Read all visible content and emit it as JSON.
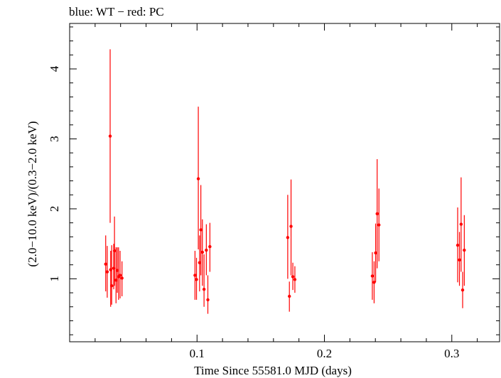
{
  "chart_data": {
    "type": "scatter",
    "title": "blue: WT − red: PC",
    "xlabel": "Time Since 55581.0 MJD (days)",
    "ylabel": "(2.0−10.0 keV)/(0.3−2.0 keV)",
    "xlim": [
      0.0,
      0.3375
    ],
    "ylim": [
      0.1,
      4.65
    ],
    "x_ticks": [
      {
        "value": 0.1,
        "label": "0.1"
      },
      {
        "value": 0.2,
        "label": "0.2"
      },
      {
        "value": 0.3,
        "label": "0.3"
      }
    ],
    "y_ticks": [
      {
        "value": 1,
        "label": "1"
      },
      {
        "value": 2,
        "label": "2"
      },
      {
        "value": 3,
        "label": "3"
      },
      {
        "value": 4,
        "label": "4"
      }
    ],
    "colors": {
      "pc": "#ff0000",
      "axis": "#000000"
    },
    "series": [
      {
        "name": "PC",
        "color": "#ff0000",
        "points": [
          {
            "x": 0.0283,
            "y": 1.21,
            "lo": 0.82,
            "hi": 1.62
          },
          {
            "x": 0.0295,
            "y": 1.1,
            "lo": 0.73,
            "hi": 1.47
          },
          {
            "x": 0.0318,
            "y": 3.04,
            "lo": 1.8,
            "hi": 4.28
          },
          {
            "x": 0.0322,
            "y": 1.13,
            "lo": 0.6,
            "hi": 1.4
          },
          {
            "x": 0.033,
            "y": 0.9,
            "lo": 0.63,
            "hi": 1.48
          },
          {
            "x": 0.0346,
            "y": 1.15,
            "lo": 0.85,
            "hi": 1.5
          },
          {
            "x": 0.0352,
            "y": 1.4,
            "lo": 0.9,
            "hi": 1.89
          },
          {
            "x": 0.0364,
            "y": 0.98,
            "lo": 0.65,
            "hi": 1.45
          },
          {
            "x": 0.0374,
            "y": 1.12,
            "lo": 0.8,
            "hi": 1.45
          },
          {
            "x": 0.0384,
            "y": 1.03,
            "lo": 0.7,
            "hi": 1.45
          },
          {
            "x": 0.0396,
            "y": 1.05,
            "lo": 0.72,
            "hi": 1.4
          },
          {
            "x": 0.0411,
            "y": 1.01,
            "lo": 0.75,
            "hi": 1.25
          },
          {
            "x": 0.0984,
            "y": 1.05,
            "lo": 0.7,
            "hi": 1.4
          },
          {
            "x": 0.0996,
            "y": 0.99,
            "lo": 0.7,
            "hi": 1.3
          },
          {
            "x": 0.101,
            "y": 2.43,
            "lo": 1.42,
            "hi": 3.46
          },
          {
            "x": 0.102,
            "y": 1.23,
            "lo": 0.82,
            "hi": 1.62
          },
          {
            "x": 0.103,
            "y": 1.7,
            "lo": 1.05,
            "hi": 2.34
          },
          {
            "x": 0.1042,
            "y": 1.38,
            "lo": 0.9,
            "hi": 1.85
          },
          {
            "x": 0.1055,
            "y": 0.85,
            "lo": 0.6,
            "hi": 1.35
          },
          {
            "x": 0.1073,
            "y": 1.41,
            "lo": 1.05,
            "hi": 1.78
          },
          {
            "x": 0.1085,
            "y": 0.7,
            "lo": 0.5,
            "hi": 1.05
          },
          {
            "x": 0.1101,
            "y": 1.46,
            "lo": 1.1,
            "hi": 1.8
          },
          {
            "x": 0.1712,
            "y": 1.59,
            "lo": 1.0,
            "hi": 2.2
          },
          {
            "x": 0.1725,
            "y": 0.75,
            "lo": 0.53,
            "hi": 0.96
          },
          {
            "x": 0.1738,
            "y": 1.75,
            "lo": 1.05,
            "hi": 2.42
          },
          {
            "x": 0.1752,
            "y": 1.03,
            "lo": 0.84,
            "hi": 1.23
          },
          {
            "x": 0.1768,
            "y": 0.99,
            "lo": 0.8,
            "hi": 1.18
          },
          {
            "x": 0.2376,
            "y": 1.04,
            "lo": 0.7,
            "hi": 1.38
          },
          {
            "x": 0.239,
            "y": 0.95,
            "lo": 0.65,
            "hi": 1.25
          },
          {
            "x": 0.2402,
            "y": 1.37,
            "lo": 0.95,
            "hi": 1.79
          },
          {
            "x": 0.2414,
            "y": 1.93,
            "lo": 1.15,
            "hi": 2.71
          },
          {
            "x": 0.2428,
            "y": 1.77,
            "lo": 1.25,
            "hi": 2.29
          },
          {
            "x": 0.3046,
            "y": 1.48,
            "lo": 0.95,
            "hi": 2.02
          },
          {
            "x": 0.306,
            "y": 1.27,
            "lo": 0.9,
            "hi": 1.67
          },
          {
            "x": 0.3073,
            "y": 1.78,
            "lo": 1.1,
            "hi": 2.45
          },
          {
            "x": 0.3085,
            "y": 0.84,
            "lo": 0.58,
            "hi": 1.1
          },
          {
            "x": 0.3098,
            "y": 1.41,
            "lo": 0.9,
            "hi": 1.91
          }
        ]
      }
    ]
  }
}
